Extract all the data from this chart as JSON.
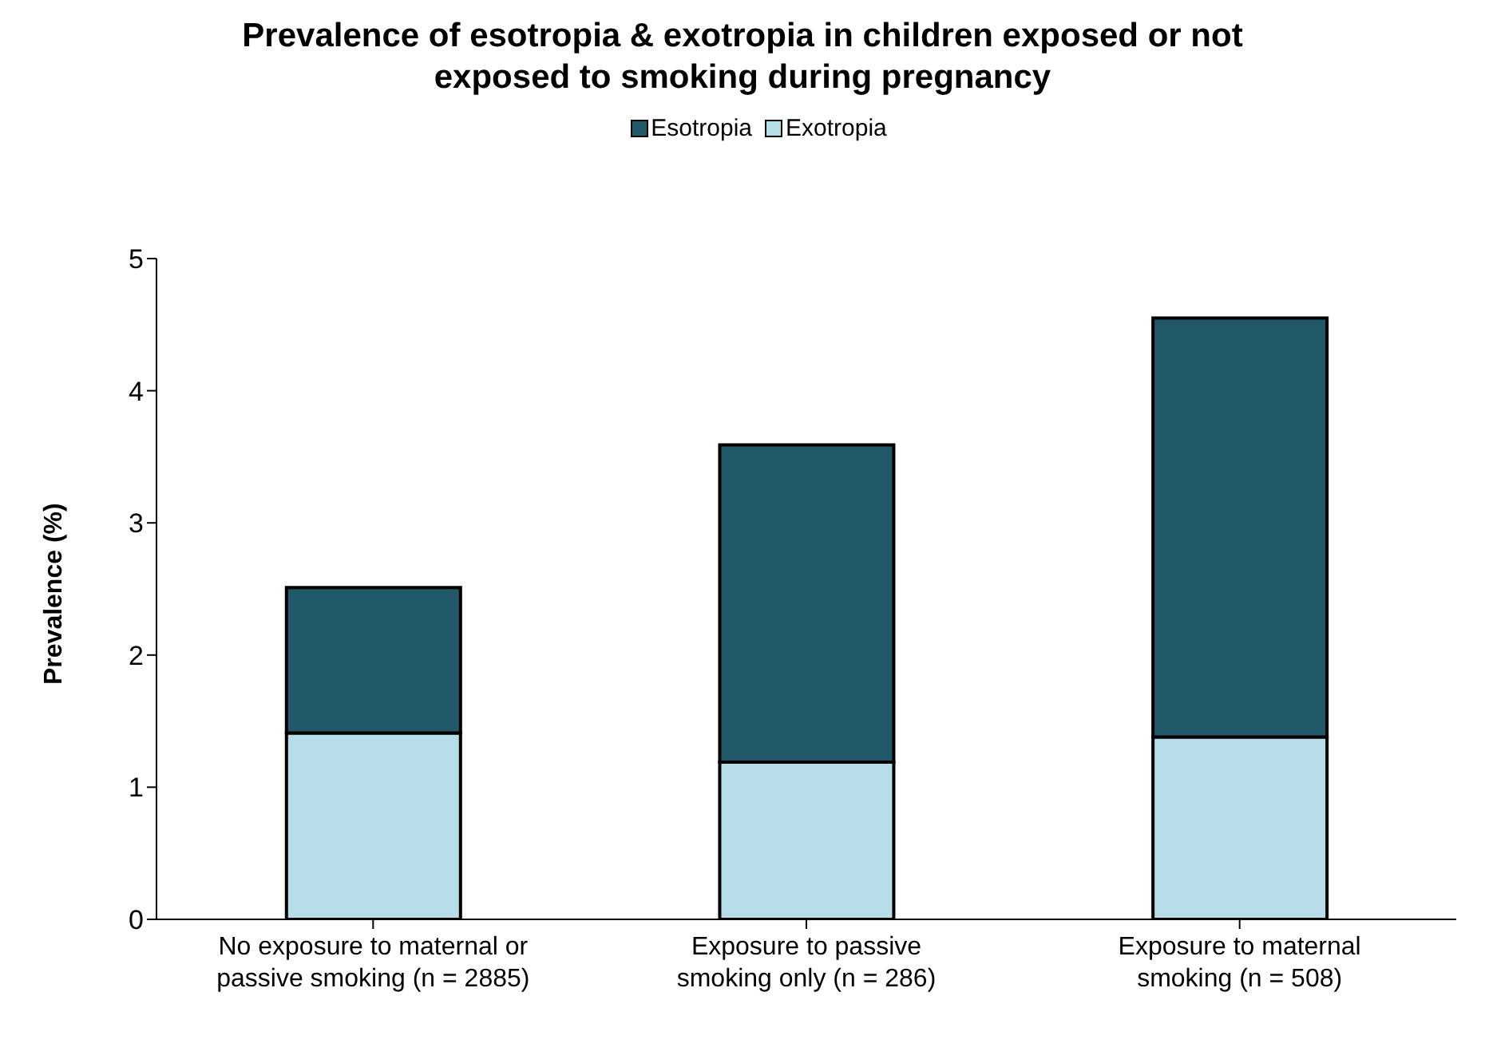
{
  "chart_data": {
    "type": "bar",
    "title": "Prevalence of esotropia & exotropia in children exposed or not exposed to smoking during pregnancy",
    "ylabel": "Prevalence  (%)",
    "categories": [
      "No exposure to maternal or passive smoking (n = 2885)",
      "Exposure to passive smoking only (n = 286)",
      "Exposure to maternal smoking (n = 508)"
    ],
    "series": [
      {
        "name": "Exotropia",
        "color": "#b7dde8",
        "values": [
          1.41,
          1.19,
          1.38
        ]
      },
      {
        "name": "Esotropia",
        "color": "#215968",
        "values": [
          1.1,
          2.4,
          3.17
        ]
      }
    ],
    "stacked": true,
    "ylim": [
      0,
      5
    ],
    "yticks": [
      0,
      1,
      2,
      3,
      4,
      5
    ],
    "grid": false,
    "legend": "top"
  }
}
